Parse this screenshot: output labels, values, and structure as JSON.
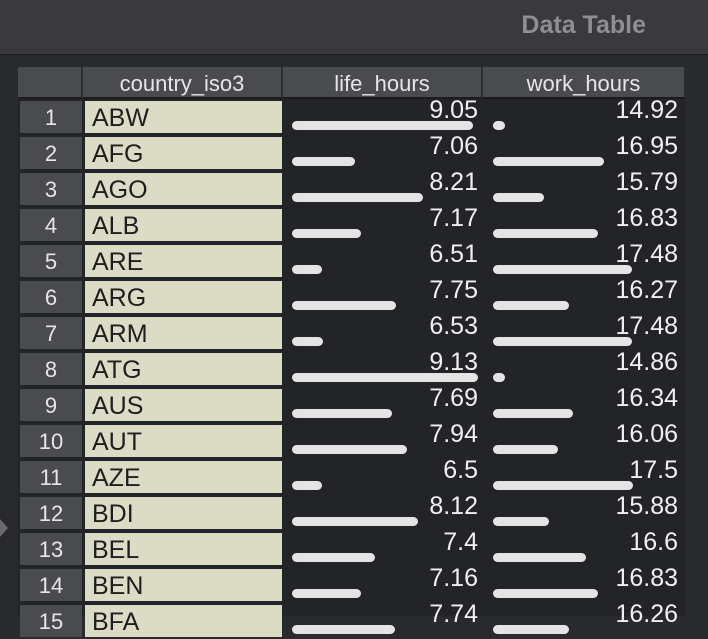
{
  "window": {
    "title": "Data Table"
  },
  "columns": [
    "country_iso3",
    "life_hours",
    "work_hours"
  ],
  "rows": [
    {
      "n": "1",
      "iso": "ABW",
      "life": "9.05",
      "work": "14.92"
    },
    {
      "n": "2",
      "iso": "AFG",
      "life": "7.06",
      "work": "16.95"
    },
    {
      "n": "3",
      "iso": "AGO",
      "life": "8.21",
      "work": "15.79"
    },
    {
      "n": "4",
      "iso": "ALB",
      "life": "7.17",
      "work": "16.83"
    },
    {
      "n": "5",
      "iso": "ARE",
      "life": "6.51",
      "work": "17.48"
    },
    {
      "n": "6",
      "iso": "ARG",
      "life": "7.75",
      "work": "16.27"
    },
    {
      "n": "7",
      "iso": "ARM",
      "life": "6.53",
      "work": "17.48"
    },
    {
      "n": "8",
      "iso": "ATG",
      "life": "9.13",
      "work": "14.86"
    },
    {
      "n": "9",
      "iso": "AUS",
      "life": "7.69",
      "work": "16.34"
    },
    {
      "n": "10",
      "iso": "AUT",
      "life": "7.94",
      "work": "16.06"
    },
    {
      "n": "11",
      "iso": "AZE",
      "life": "6.5",
      "work": "17.5"
    },
    {
      "n": "12",
      "iso": "BDI",
      "life": "8.12",
      "work": "15.88"
    },
    {
      "n": "13",
      "iso": "BEL",
      "life": "7.4",
      "work": "16.6"
    },
    {
      "n": "14",
      "iso": "BEN",
      "life": "7.16",
      "work": "16.83"
    },
    {
      "n": "15",
      "iso": "BFA",
      "life": "7.74",
      "work": "16.26"
    }
  ],
  "bars": {
    "life_hours_range": [
      6.0,
      9.2
    ],
    "work_hours_range": [
      14.8,
      17.7
    ]
  },
  "colors": {
    "titlebar": "#3a3a3c",
    "header": "#4a4b4f",
    "iso_cell": "#dcdcc6",
    "table_bg": "#232428",
    "bar": "#e4e4e4"
  }
}
